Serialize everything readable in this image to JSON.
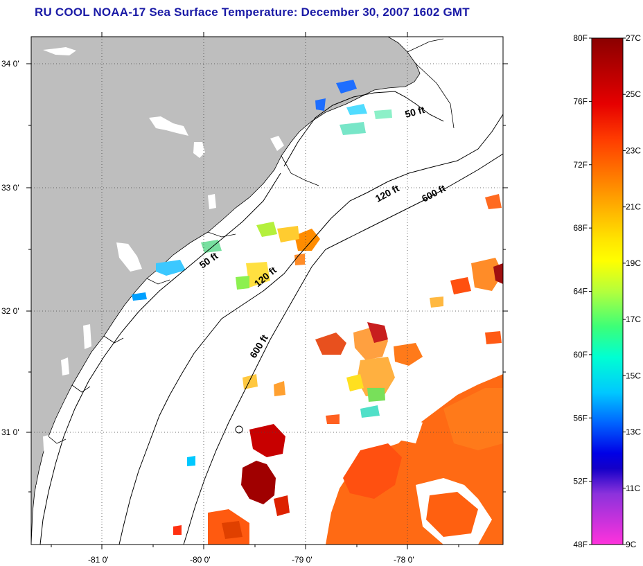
{
  "title": "RU COOL  NOAA-17  Sea Surface Temperature:  December 30, 2007 1602 GMT",
  "map": {
    "lat_labels": [
      "34 0'",
      "33 0'",
      "32 0'",
      "31 0'"
    ],
    "lon_labels": [
      "-81 0'",
      "-80 0'",
      "-79 0'",
      "-78 0'"
    ],
    "land_color": "#bebebe",
    "ocean_color": "#ffffff",
    "isobath_labels": [
      {
        "text": "50 ft"
      },
      {
        "text": "120 ft"
      },
      {
        "text": "600 ft"
      },
      {
        "text": "50 ft"
      },
      {
        "text": "120 ft"
      },
      {
        "text": "600 ft"
      }
    ]
  },
  "colorbar": {
    "fahrenheit_labels": [
      "80F",
      "76F",
      "72F",
      "68F",
      "64F",
      "60F",
      "56F",
      "52F",
      "48F"
    ],
    "celsius_labels": [
      "27C",
      "25C",
      "23C",
      "21C",
      "19C",
      "17C",
      "15C",
      "13C",
      "11C",
      "9C"
    ],
    "colors_top_to_bottom": [
      "#8b0000",
      "#e60000",
      "#ff5a00",
      "#ff9a00",
      "#ffdc00",
      "#ffff00",
      "#b4ff3c",
      "#3cff78",
      "#00ffdc",
      "#00c8ff",
      "#0064ff",
      "#0000e6",
      "#8c32dc",
      "#ff32dc"
    ]
  }
}
